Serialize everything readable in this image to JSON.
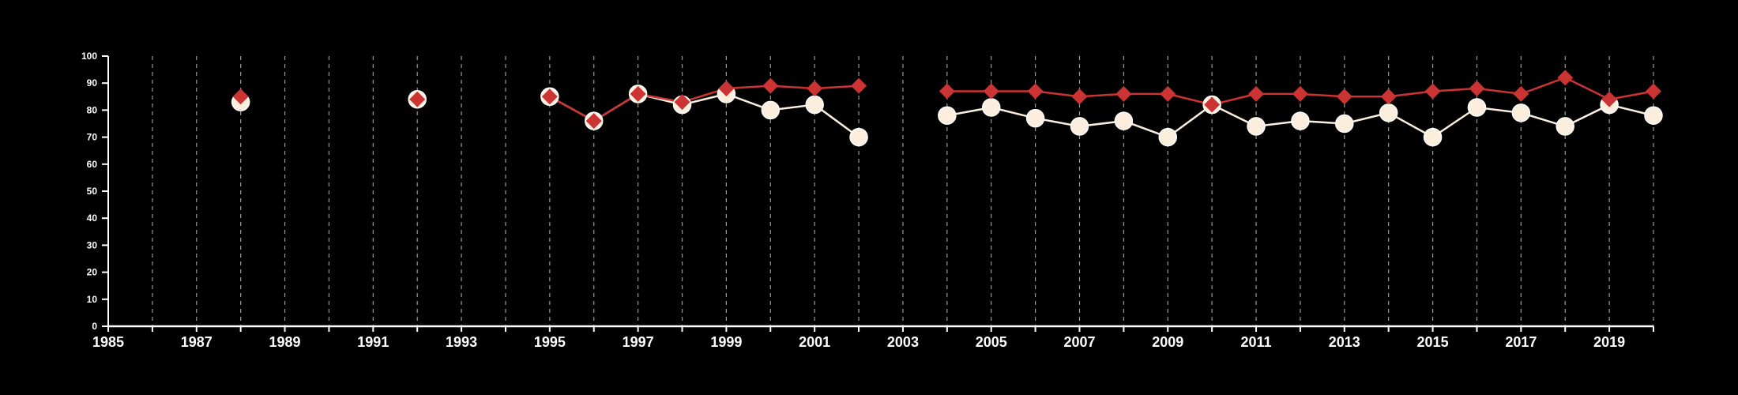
{
  "chart_data": {
    "type": "line",
    "title": "",
    "xlabel": "",
    "ylabel": "",
    "xlim": [
      1985,
      2020
    ],
    "ylim": [
      0,
      100
    ],
    "x_tick_labels": [
      "1985",
      "1987",
      "1989",
      "1991",
      "1993",
      "1995",
      "1997",
      "1999",
      "2001",
      "2003",
      "2005",
      "2007",
      "2009",
      "2011",
      "2013",
      "2015",
      "2017",
      "2019"
    ],
    "y_tick_labels": [
      "0",
      "10",
      "20",
      "30",
      "40",
      "50",
      "60",
      "70",
      "80",
      "90",
      "100"
    ],
    "grid": "vertical dashed lines at every year",
    "legend": "none",
    "series": [
      {
        "marker": "circle",
        "color": "#fbeedd",
        "points": [
          [
            1988,
            83
          ],
          [
            1992,
            84
          ],
          [
            1995,
            85
          ],
          [
            1996,
            76
          ],
          [
            1997,
            86
          ],
          [
            1998,
            82
          ],
          [
            1999,
            86
          ],
          [
            2000,
            80
          ],
          [
            2001,
            82
          ],
          [
            2002,
            70
          ],
          [
            2004,
            78
          ],
          [
            2005,
            81
          ],
          [
            2006,
            77
          ],
          [
            2007,
            74
          ],
          [
            2008,
            76
          ],
          [
            2009,
            70
          ],
          [
            2010,
            82
          ],
          [
            2011,
            74
          ],
          [
            2012,
            76
          ],
          [
            2013,
            75
          ],
          [
            2014,
            79
          ],
          [
            2015,
            70
          ],
          [
            2016,
            81
          ],
          [
            2017,
            79
          ],
          [
            2018,
            74
          ],
          [
            2019,
            82
          ],
          [
            2020,
            78
          ]
        ]
      },
      {
        "marker": "diamond",
        "color": "#cc3333",
        "points": [
          [
            1988,
            85
          ],
          [
            1992,
            84
          ],
          [
            1995,
            85
          ],
          [
            1996,
            76
          ],
          [
            1997,
            86
          ],
          [
            1998,
            83
          ],
          [
            1999,
            88
          ],
          [
            2000,
            89
          ],
          [
            2001,
            88
          ],
          [
            2002,
            89
          ],
          [
            2004,
            87
          ],
          [
            2005,
            87
          ],
          [
            2006,
            87
          ],
          [
            2007,
            85
          ],
          [
            2008,
            86
          ],
          [
            2009,
            86
          ],
          [
            2010,
            82
          ],
          [
            2011,
            86
          ],
          [
            2012,
            86
          ],
          [
            2013,
            85
          ],
          [
            2014,
            85
          ],
          [
            2015,
            87
          ],
          [
            2016,
            88
          ],
          [
            2017,
            86
          ],
          [
            2018,
            92
          ],
          [
            2019,
            84
          ],
          [
            2020,
            87
          ]
        ]
      }
    ]
  }
}
